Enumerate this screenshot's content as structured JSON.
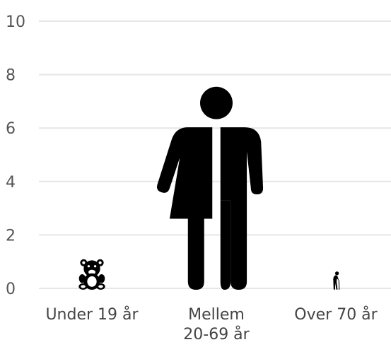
{
  "chart_data": {
    "type": "bar",
    "categories": [
      {
        "lines": [
          "Under 19 år"
        ],
        "icon": "teddy-bear-icon"
      },
      {
        "lines": [
          "Mellem",
          "20-69 år"
        ],
        "icon": "person-unisex-icon"
      },
      {
        "lines": [
          "Over 70 år"
        ],
        "icon": "elderly-person-cane-icon"
      }
    ],
    "values": [
      1.1,
      7.6,
      0.7
    ],
    "yticks": [
      0,
      2,
      4,
      6,
      8,
      10
    ],
    "ylim": [
      0,
      10
    ],
    "grid": true,
    "colors": {
      "marks": "#000000",
      "grid": "#e6e6e6",
      "text": "#555555"
    }
  }
}
